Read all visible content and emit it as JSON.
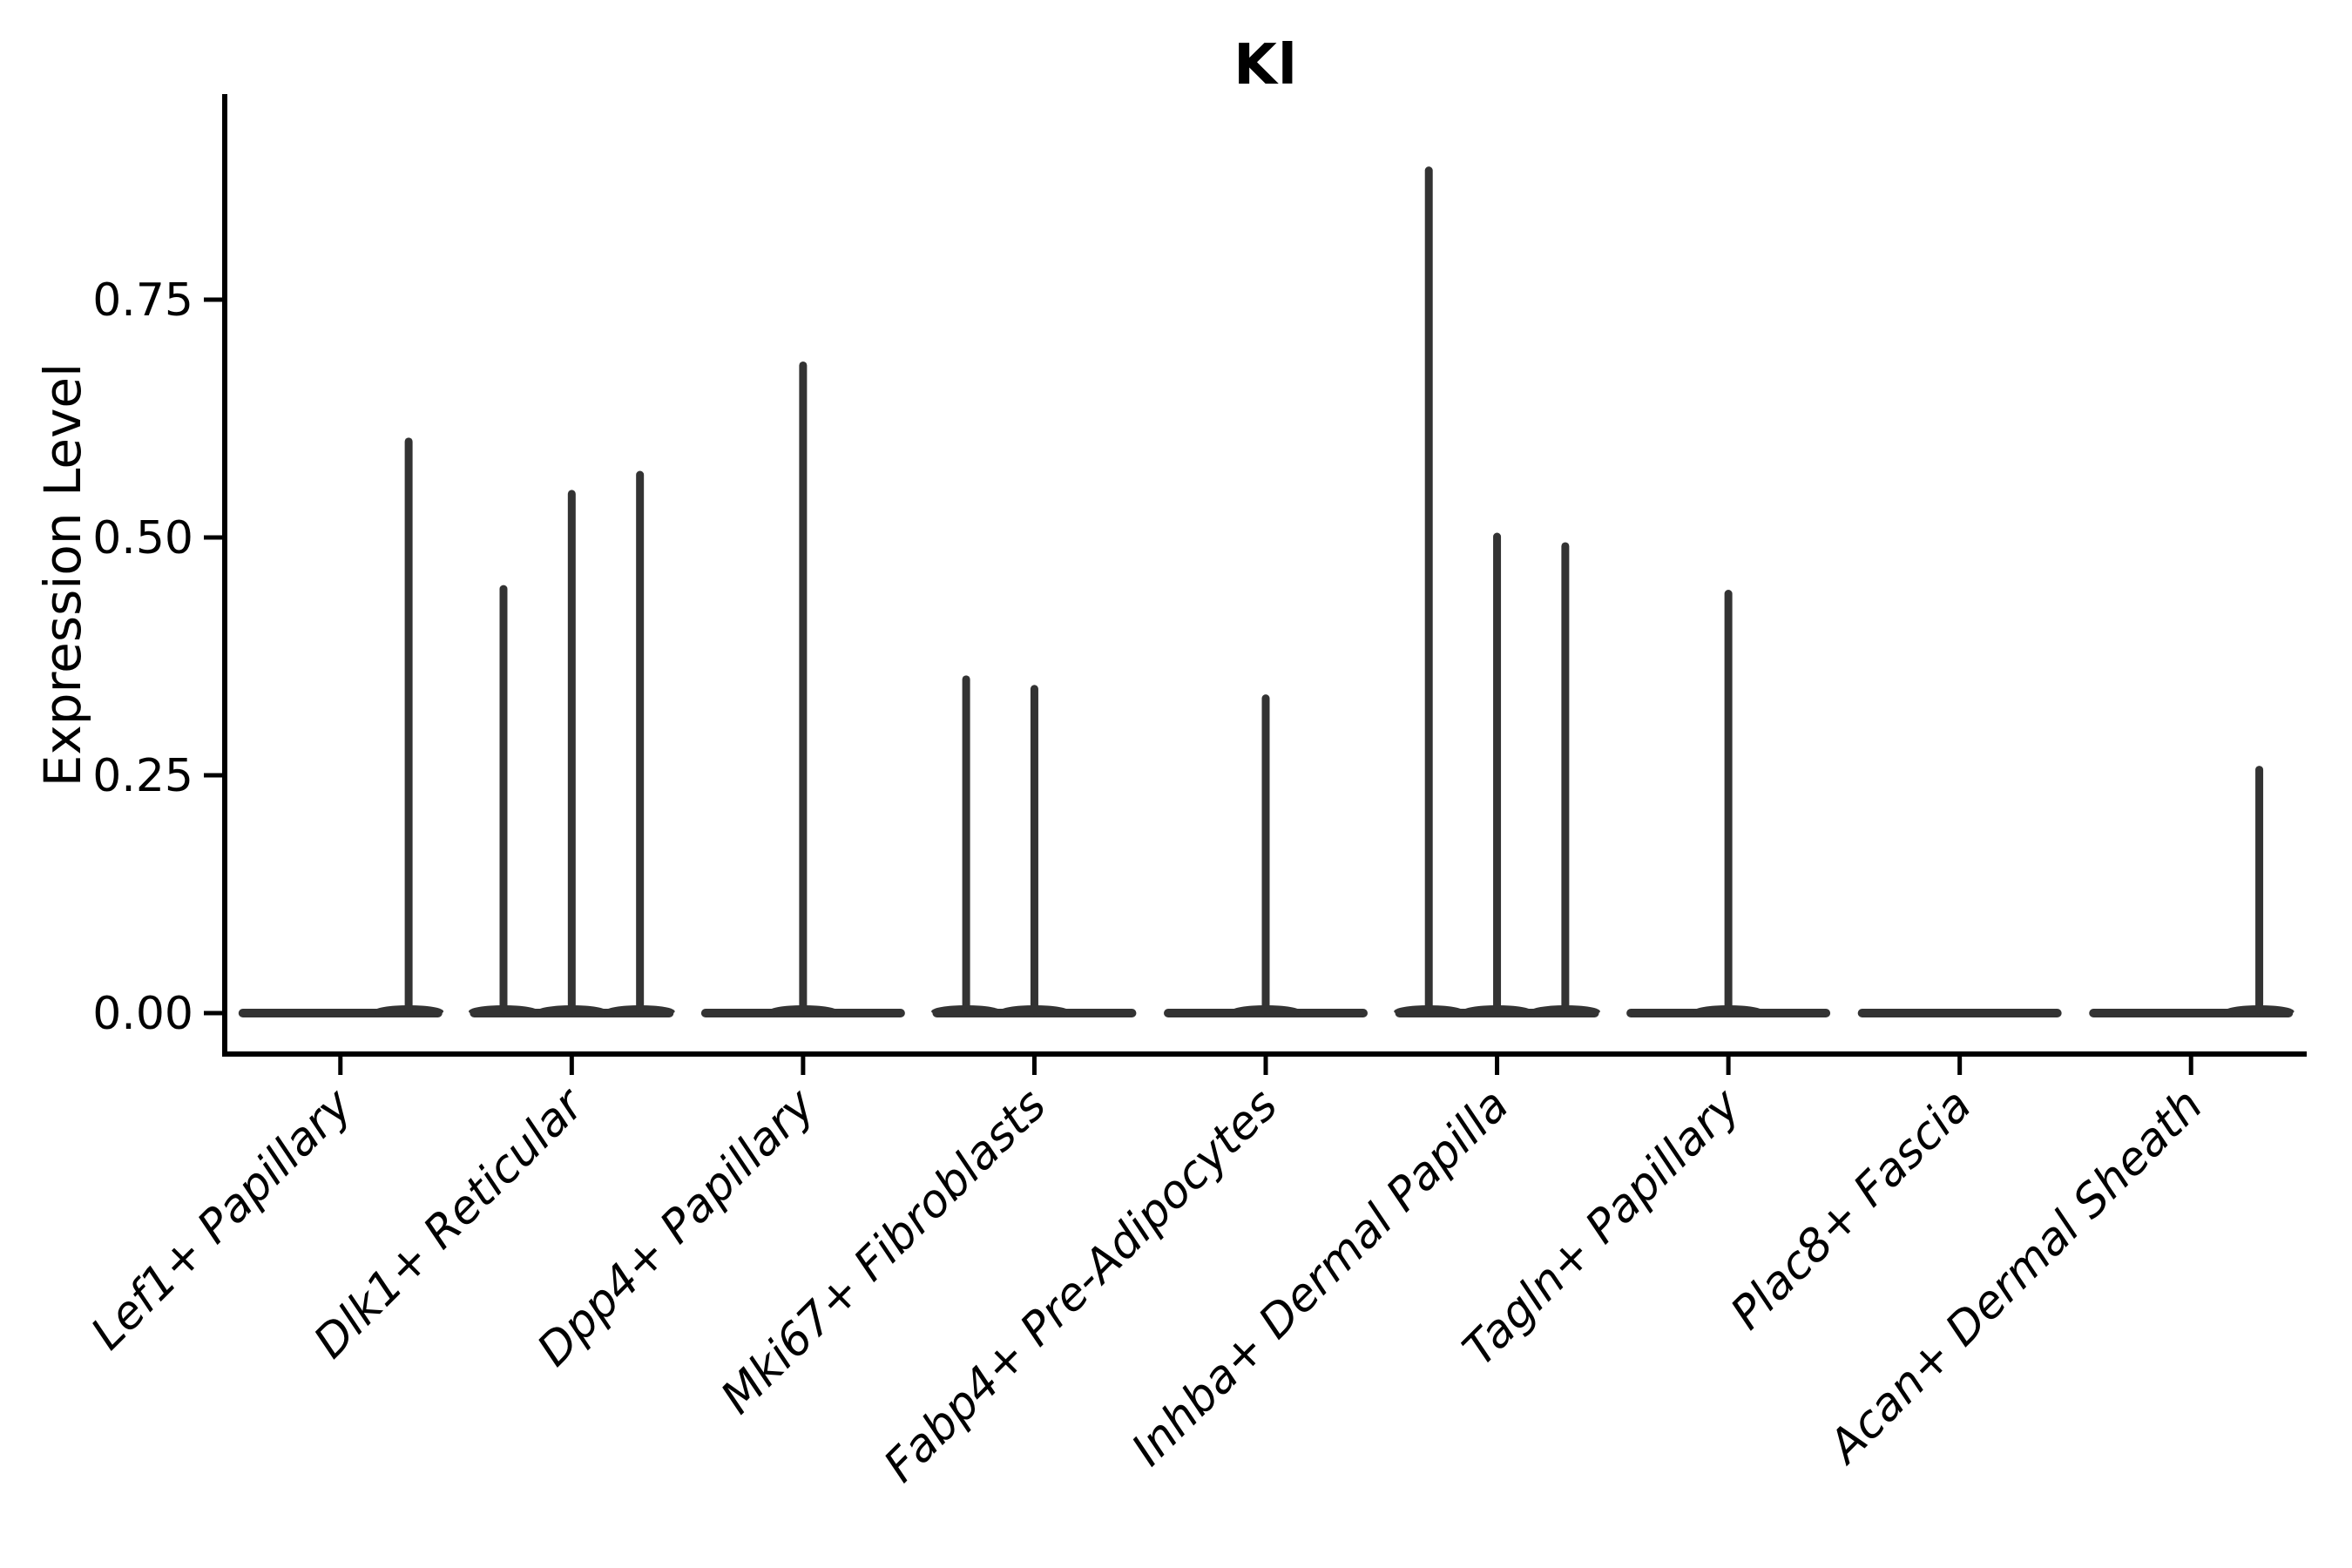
{
  "page": {
    "background": "#ffffff"
  },
  "chart_data": {
    "type": "violin",
    "title": "Kl",
    "ylabel": "Expression Level",
    "xlabel": "",
    "ylim": [
      0,
      0.966
    ],
    "yticks": [
      "0.00",
      "0.25",
      "0.50",
      "0.75"
    ],
    "ytick_values": [
      0,
      0.25,
      0.5,
      0.75
    ],
    "grid": false,
    "legend": "none",
    "x_label_rotation_deg": 45,
    "colors": {
      "violin": "#333333",
      "axis": "#000000",
      "text": "#000000"
    },
    "categories": [
      "Lef1+ Papillary",
      "Dlk1+ Reticular",
      "Dpp4+ Papillary",
      "Mki67+ Fibroblasts",
      "Fabp4+ Pre-Adipocytes",
      "Inhba+ Dermal Papilla",
      "Tagln+ Papillary",
      "Plac8+ Fascia",
      "Acan+ Dermal Sheath"
    ],
    "violins": [
      {
        "category": "Lef1+ Papillary",
        "max_expression_spikes": [
          {
            "pos": 1,
            "value": 0.605
          }
        ]
      },
      {
        "category": "Dlk1+ Reticular",
        "max_expression_spikes": [
          {
            "pos": -1,
            "value": 0.45
          },
          {
            "pos": 0,
            "value": 0.55
          },
          {
            "pos": 1,
            "value": 0.57
          }
        ]
      },
      {
        "category": "Dpp4+ Papillary",
        "max_expression_spikes": [
          {
            "pos": 0,
            "value": 0.685
          }
        ]
      },
      {
        "category": "Mki67+ Fibroblasts",
        "max_expression_spikes": [
          {
            "pos": -1,
            "value": 0.355
          },
          {
            "pos": 0,
            "value": 0.345
          }
        ]
      },
      {
        "category": "Fabp4+ Pre-Adipocytes",
        "max_expression_spikes": [
          {
            "pos": 0,
            "value": 0.335
          }
        ]
      },
      {
        "category": "Inhba+ Dermal Papilla",
        "max_expression_spikes": [
          {
            "pos": -1,
            "value": 0.89
          },
          {
            "pos": 0,
            "value": 0.505
          },
          {
            "pos": 1,
            "value": 0.495
          }
        ]
      },
      {
        "category": "Tagln+ Papillary",
        "max_expression_spikes": [
          {
            "pos": 0,
            "value": 0.445
          }
        ]
      },
      {
        "category": "Plac8+ Fascia",
        "max_expression_spikes": []
      },
      {
        "category": "Acan+ Dermal Sheath",
        "max_expression_spikes": [
          {
            "pos": 1,
            "value": 0.26
          }
        ]
      }
    ]
  }
}
